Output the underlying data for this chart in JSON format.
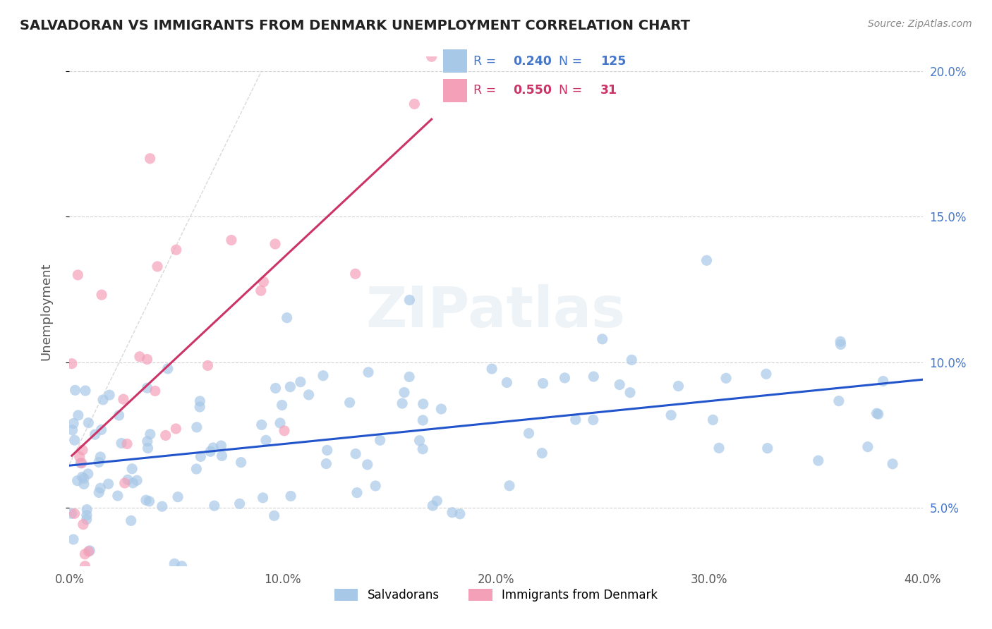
{
  "title": "SALVADORAN VS IMMIGRANTS FROM DENMARK UNEMPLOYMENT CORRELATION CHART",
  "source_text": "Source: ZipAtlas.com",
  "xlabel_sal": "Salvadorans",
  "xlabel_den": "Immigrants from Denmark",
  "ylabel": "Unemployment",
  "x_min": 0.0,
  "x_max": 0.4,
  "y_min": 0.03,
  "y_max": 0.205,
  "x_ticks": [
    0.0,
    0.1,
    0.2,
    0.3,
    0.4
  ],
  "x_tick_labels": [
    "0.0%",
    "10.0%",
    "20.0%",
    "30.0%",
    "40.0%"
  ],
  "y_ticks": [
    0.05,
    0.1,
    0.15,
    0.2
  ],
  "y_tick_labels": [
    "5.0%",
    "10.0%",
    "15.0%",
    "20.0%"
  ],
  "R_sal": 0.24,
  "N_sal": 125,
  "R_den": 0.55,
  "N_den": 31,
  "sal_color": "#a8c8e8",
  "den_color": "#f4a0b8",
  "sal_line_color": "#2255cc",
  "den_line_color": "#cc3366",
  "ref_line_color": "#d0d0d0",
  "watermark_color": "#dce8f0",
  "background_color": "#ffffff",
  "legend_box_color": "#ffffff",
  "legend_border_color": "#cccccc",
  "sal_text_color": "#4477cc",
  "den_text_color": "#cc3366",
  "title_color": "#222222",
  "ylabel_color": "#555555",
  "tick_color": "#555555"
}
